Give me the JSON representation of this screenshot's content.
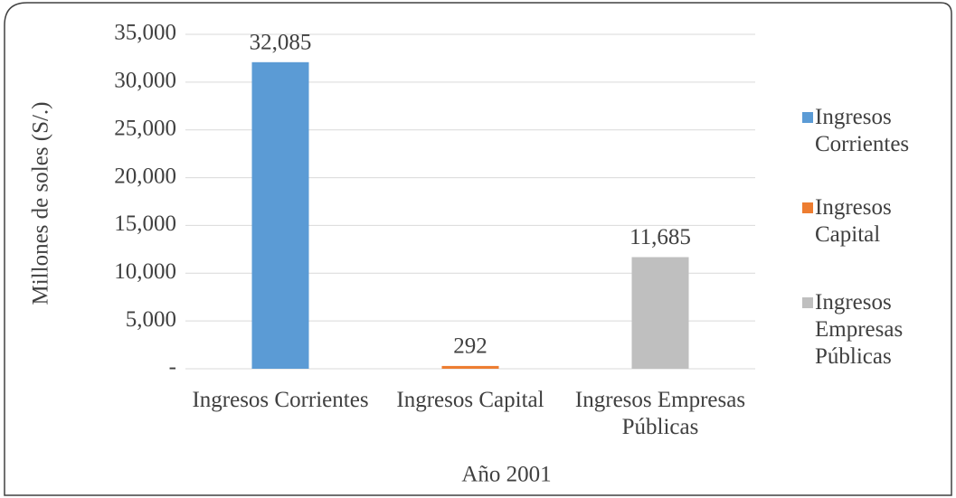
{
  "chart_data": {
    "type": "bar",
    "categories": [
      "Ingresos Corrientes",
      "Ingresos Capital",
      "Ingresos Empresas Públicas"
    ],
    "values": [
      32085,
      292,
      11685
    ],
    "value_labels": [
      "32,085",
      "292",
      "11,685"
    ],
    "colors": [
      "#5b9bd5",
      "#ed7d31",
      "#bfbfbf"
    ],
    "x_label": "Año 2001",
    "y_label": "Millones de soles (S/.)",
    "ylim": [
      0,
      35000
    ],
    "yticks": [
      {
        "value": 0,
        "label": "-"
      },
      {
        "value": 5000,
        "label": "5,000"
      },
      {
        "value": 10000,
        "label": "10,000"
      },
      {
        "value": 15000,
        "label": "15,000"
      },
      {
        "value": 20000,
        "label": "20,000"
      },
      {
        "value": 25000,
        "label": "25,000"
      },
      {
        "value": 30000,
        "label": "30,000"
      },
      {
        "value": 35000,
        "label": "35,000"
      }
    ],
    "grid": true,
    "legend": "right"
  }
}
